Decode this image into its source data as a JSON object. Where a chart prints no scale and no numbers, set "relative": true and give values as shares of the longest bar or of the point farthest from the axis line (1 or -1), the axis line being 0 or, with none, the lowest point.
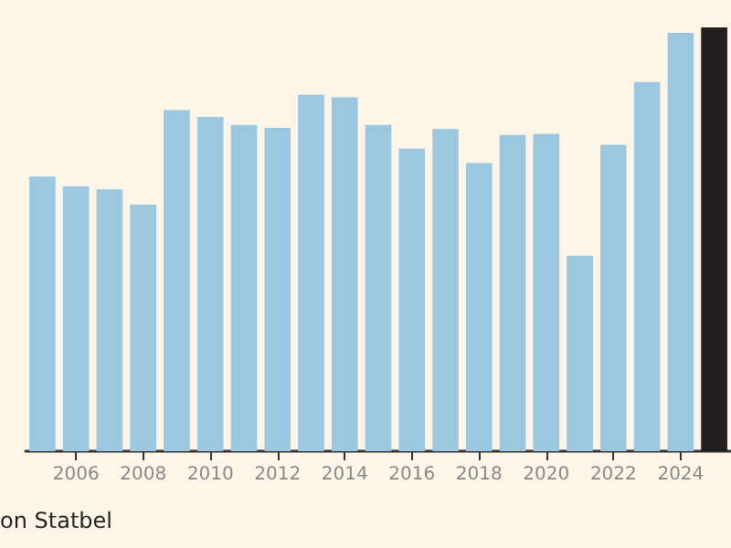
{
  "chart_data": {
    "type": "bar",
    "relative": true,
    "categories": [
      null,
      "2006",
      null,
      "2008",
      null,
      "2010",
      null,
      "2012",
      null,
      "2014",
      null,
      "2016",
      null,
      "2018",
      null,
      "2020",
      null,
      "2022",
      null,
      "2024",
      null
    ],
    "values": [
      0.648,
      0.625,
      0.618,
      0.582,
      0.805,
      0.789,
      0.77,
      0.763,
      0.841,
      0.835,
      0.77,
      0.714,
      0.76,
      0.68,
      0.746,
      0.749,
      0.461,
      0.723,
      0.871,
      0.987,
      1
    ],
    "colors": [
      "#9bc8e0",
      "#9bc8e0",
      "#9bc8e0",
      "#9bc8e0",
      "#9bc8e0",
      "#9bc8e0",
      "#9bc8e0",
      "#9bc8e0",
      "#9bc8e0",
      "#9bc8e0",
      "#9bc8e0",
      "#9bc8e0",
      "#9bc8e0",
      "#9bc8e0",
      "#9bc8e0",
      "#9bc8e0",
      "#9bc8e0",
      "#9bc8e0",
      "#9bc8e0",
      "#9bc8e0",
      "#231f20"
    ],
    "annotations": [
      "on Statbel"
    ]
  }
}
